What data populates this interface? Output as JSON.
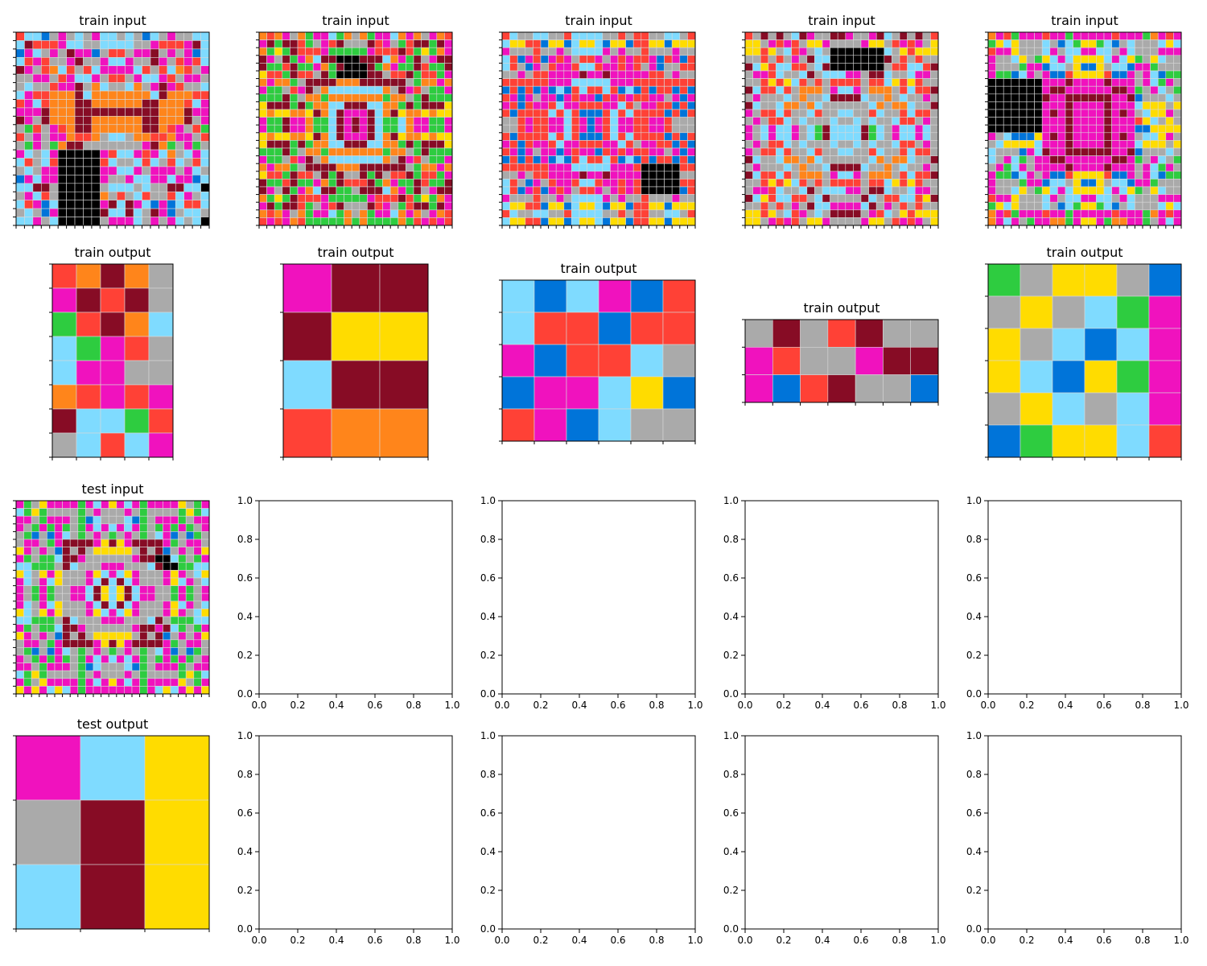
{
  "colors": {
    "0": "#000000",
    "1": "#0074D9",
    "2": "#FF4136",
    "3": "#2ECC40",
    "4": "#FFDC00",
    "5": "#AAAAAA",
    "6": "#F012BE",
    "7": "#FF851B",
    "8": "#7FDBFF",
    "9": "#870C25"
  },
  "empty_axes": {
    "ticks": [
      "0.0",
      "0.2",
      "0.4",
      "0.6",
      "0.8",
      "1.0"
    ]
  },
  "panels": [
    {
      "row": 0,
      "col": 0,
      "title": "train input",
      "grid": [
        "28815658568858518565588",
        "89222688558888556222698",
        "16856596615225669565618",
        "82625569556886559652628",
        "96527825286666825287256",
        "55665268865225688625665",
        "58552669578558756962558",
        "86227779877777778977722",
        "26827779977777799777286",
        "66697779999999999777966",
        "96597779977777799777956",
        "53256279977777799726523",
        "25656672275885772276652",
        "53653799555555569735635",
        "68586000006288626875868",
        "82582000002855828528528",
        "58566000006688656665685",
        "16866000006556886686618",
        "88995000005888585599880",
        "56825000007525825528658",
        "82618000006989681618228",
        "58516000009889859615885",
        "88658000005666856568580"
      ]
    },
    {
      "row": 0,
      "col": 1,
      "title": "train input",
      "grid": [
        "7276573668375736687675672",
        "6939923562955592653299396",
        "7343922263333362229234376",
        "9659367899000999876395699",
        "9332933673900093763392339",
        "4223922593000099522932236",
        "7677359999777999999537767",
        "6335269578888888759625336",
        "3339357737777777377539333",
        "4999393778899988773939994",
        "4744774978966698794774744",
        "6339667338969698338766336",
        "6339667338969698338766336",
        "4744774978966698794774744",
        "4999393778899988773939994",
        "3339357737777777377539333",
        "6335269578888888759625336",
        "7677359999777999999537767",
        "4223922593955939522932236",
        "9332933673922293763392339",
        "9659367899335999876395699",
        "7343922263333362229234376",
        "6939923562955592653299396",
        "7276573668375736687675672",
        "2626723333373733337326262"
      ]
    },
    {
      "row": 0,
      "col": 2,
      "title": "train input",
      "grid": [
        "2855885528888552522558852",
        "8442214418448144122441444",
        "6555255658888656552555655",
        "8216216265226562622612612",
        "8251652662882662625615522",
        "5565226666966966666225655",
        "2222226668888866622222222",
        "1212161812822821812122121",
        "2616566162661262622665616",
        "6212662866222668256622121",
        "2122228282111282822221212",
        "5526226682616286622662555",
        "5526226682616286622662555",
        "2122228282111282822221212",
        "6212662866222668256622121",
        "2616566162661262622665616",
        "1212161812822821812122121",
        "2222226668888866620000022",
        "5565226666966966660000055",
        "8251652662882662620000022",
        "8216216265226562620000012",
        "6555255658888656552555655",
        "8442214418448144122441444",
        "2855885528888552522558852",
        "8442214418448144122441444"
      ]
    },
    {
      "row": 0,
      "col": 3,
      "title": "train input",
      "grid": [
        "2595958965599655698595952",
        "4456262544655556445262654",
        "4424582658500000008542444",
        "5525256598800000009525255",
        "9842882258900000005228829",
        "5662855895888665998558665",
        "5524248252522225228424255",
        "9822825777568865777528229",
        "5655585755899998557585565",
        "9855877578555555875778559",
        "6522825582558855285528225",
        "5652285855585585855822565",
        "6586886583988889385688685",
        "6586886583988889385688685",
        "5652285855585585855822565",
        "6522825582558855285528225",
        "9855877578555555875778559",
        "5655585755899998557585565",
        "9822825777568865777528229",
        "5524248252522225228424255",
        "5662855895888665998558665",
        "9842882258955559852288249",
        "5525256598866668956525255",
        "4424582658599995628542444",
        "4456262544655556445262654"
      ]
    },
    {
      "row": 0,
      "col": 4,
      "title": "train input",
      "grid": [
        "7623666266366666266637626",
        "3484555851834438158555848",
        "2664555865886688568555666",
        "6558453486844448684354855",
        "6555366188541145881663555",
        "6331865611244442116568133",
        "0000000666966669666568365",
        "0000000699666666996356853",
        "0000000966999999669155585",
        "0000000666966669666844454",
        "0000000696966669696584465",
        "0000000666966669666248545",
        "0000000666966669666114444",
        "6581114696966669696588465",
        "5844448666966669666844454",
        "8555168966999999669155585",
        "8568356699666666996356853",
        "5638656666966669666568365",
        "6331865611244442116568133",
        "6555366188541145881663555",
        "6558453486844448684354855",
        "2664555865886688568555666",
        "3484555851834438158555848",
        "7623666266366666266637626",
        "7686536677364463776635686"
      ]
    },
    {
      "row": 1,
      "col": 0,
      "title": "train output",
      "grid": [
        "27975",
        "69295",
        "32978",
        "83625",
        "86655",
        "72626",
        "98832",
        "58286"
      ]
    },
    {
      "row": 1,
      "col": 1,
      "title": "train output",
      "grid": [
        "699",
        "944",
        "899",
        "277"
      ]
    },
    {
      "row": 1,
      "col": 2,
      "title": "train output",
      "grid": [
        "818612",
        "822122",
        "612285",
        "166841",
        "261855"
      ]
    },
    {
      "row": 1,
      "col": 3,
      "title": "train output",
      "grid": [
        "5952955",
        "6255699",
        "6129551"
      ]
    },
    {
      "row": 1,
      "col": 4,
      "title": "train output",
      "grid": [
        "354451",
        "545836",
        "458186",
        "481436",
        "548586",
        "134482"
      ]
    },
    {
      "row": 2,
      "col": 0,
      "title": "test input",
      "grid": [
        "6354666636864686366664536",
        "8343555535655565355553438",
        "6653666531855581356663566",
        "6536363536868686353636356",
        "5315168535653565358615135",
        "5665369999649469999635665",
        "4656519595444445959156564",
        "6353389965555556990083536",
        "8833359855566655589003388",
        "4854645556486846555646584",
        "6856845556898986555648658",
        "6536355668948498665536356",
        "6536355668948498665536356",
        "6856845556898986555648658",
        "4854645556486846555646584",
        "8833359855566655589533388",
        "6353389965555556996983536",
        "4656519595444445959156564",
        "5665369999649469999635665",
        "5315168535653565358615135",
        "6536363536868686353636356",
        "6653666531855581356663566",
        "8343555535655565355553438",
        "6354666636864686366664536",
        "4646848636666666368486464"
      ]
    },
    {
      "row": 3,
      "col": 0,
      "title": "test output",
      "grid": [
        "684",
        "594",
        "894"
      ]
    },
    {
      "row": 2,
      "col": 1,
      "title": "",
      "empty": true
    },
    {
      "row": 2,
      "col": 2,
      "title": "",
      "empty": true
    },
    {
      "row": 2,
      "col": 3,
      "title": "",
      "empty": true
    },
    {
      "row": 2,
      "col": 4,
      "title": "",
      "empty": true
    },
    {
      "row": 3,
      "col": 1,
      "title": "",
      "empty": true
    },
    {
      "row": 3,
      "col": 2,
      "title": "",
      "empty": true
    },
    {
      "row": 3,
      "col": 3,
      "title": "",
      "empty": true
    },
    {
      "row": 3,
      "col": 4,
      "title": "",
      "empty": true
    }
  ]
}
